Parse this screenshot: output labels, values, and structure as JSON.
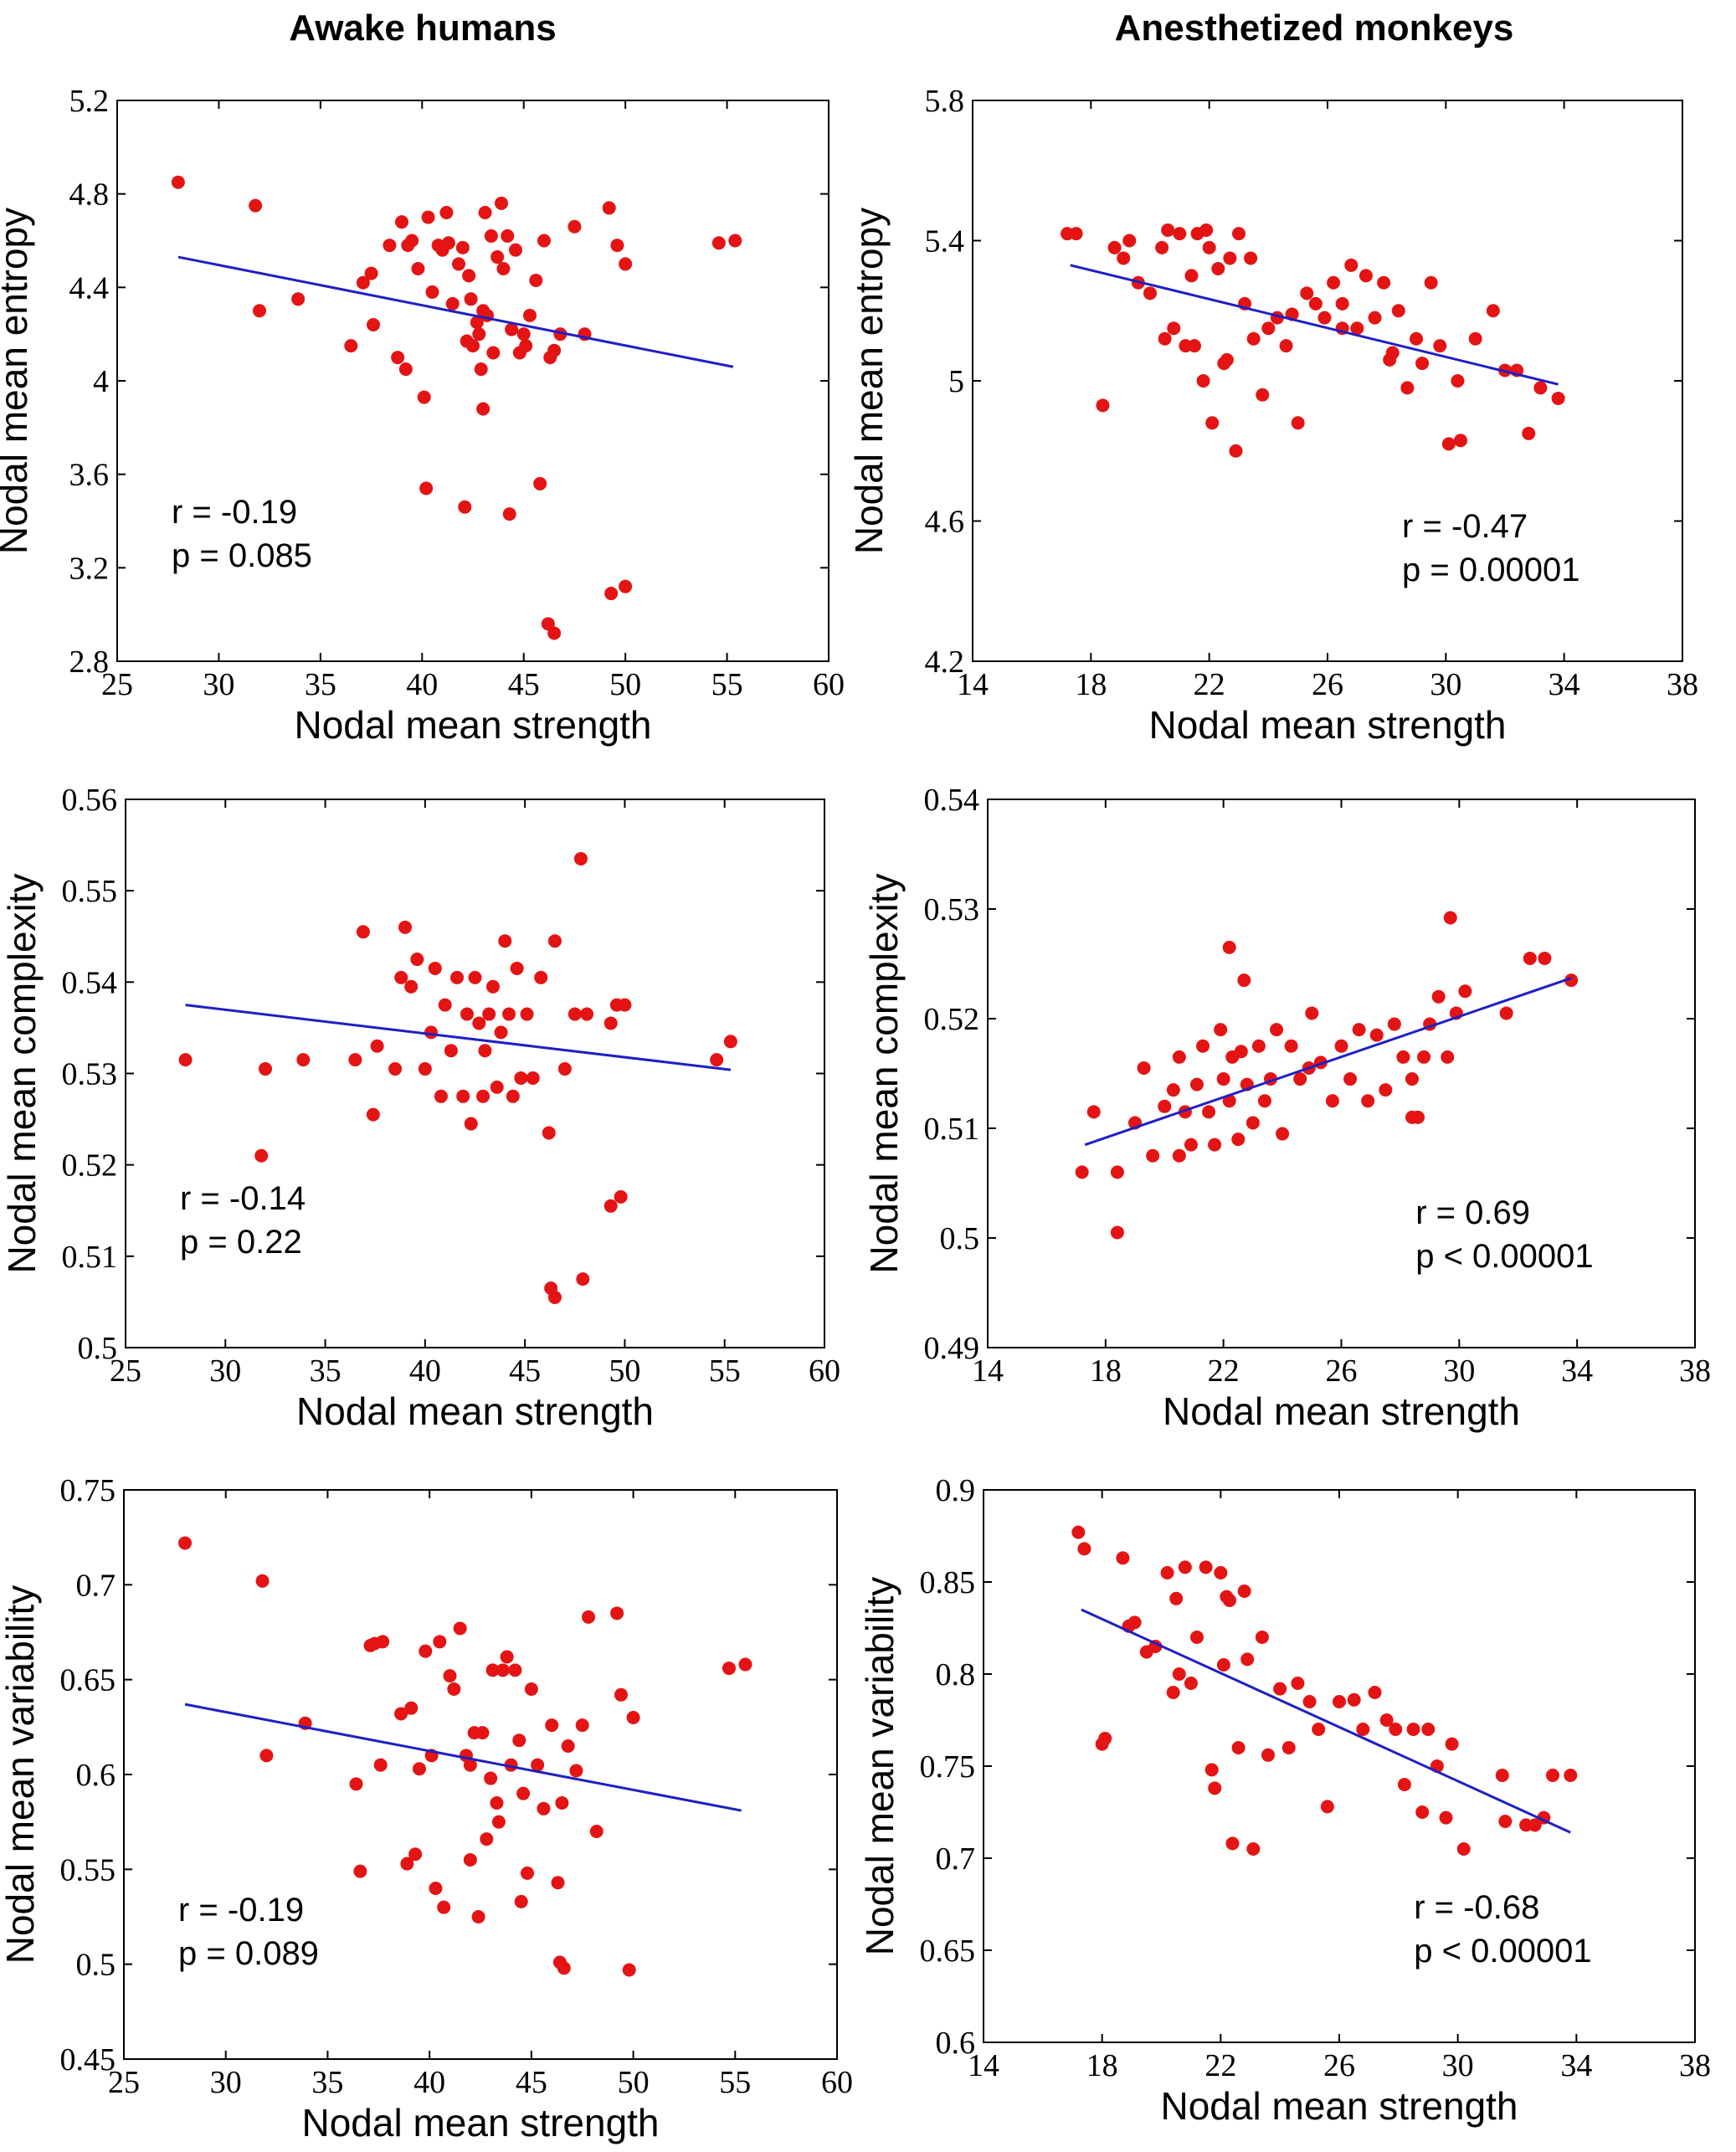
{
  "column_titles": [
    "Awake humans",
    "Anesthetized monkeys"
  ],
  "colors": {
    "points": "#e41414",
    "fit": "#1f1fc4",
    "axes": "#000000"
  },
  "chart_data": [
    {
      "id": "humans_entropy",
      "type": "scatter",
      "xlabel": "Nodal mean strength",
      "ylabel": "Nodal mean entropy",
      "xlim": [
        25,
        60
      ],
      "ylim": [
        2.8,
        5.2
      ],
      "xticks": [
        25,
        30,
        35,
        40,
        45,
        50,
        55,
        60
      ],
      "xtick_labels": [
        "25",
        "30",
        "35",
        "40",
        "45",
        "50",
        "55",
        "60"
      ],
      "yticks": [
        2.8,
        3.2,
        3.6,
        4.0,
        4.4,
        4.8,
        5.2
      ],
      "ytick_labels": [
        "2.8",
        "3.2",
        "3.6",
        "4",
        "4.4",
        "4.8",
        "5.2"
      ],
      "r_label": "r = -0.19",
      "p_label": "p = 0.085",
      "stats_position": "bottom-left",
      "fit": {
        "x": [
          28,
          55.3
        ],
        "y": [
          4.53,
          4.06
        ]
      },
      "points": {
        "x": [
          28.0,
          31.8,
          32.0,
          33.9,
          36.5,
          37.1,
          37.5,
          37.6,
          38.4,
          38.8,
          39.2,
          39.5,
          39.8,
          40.1,
          40.3,
          40.5,
          40.8,
          41.0,
          41.2,
          41.5,
          41.8,
          42.0,
          42.2,
          42.4,
          42.5,
          42.7,
          42.8,
          42.9,
          43.0,
          43.1,
          43.2,
          43.4,
          43.5,
          43.7,
          43.9,
          44.0,
          44.2,
          44.4,
          44.6,
          44.8,
          45.0,
          45.3,
          45.6,
          46.0,
          46.3,
          46.5,
          46.8,
          47.5,
          48.0,
          49.2,
          49.6,
          50.0,
          54.6,
          55.4,
          40.2,
          42.1,
          44.3,
          45.8,
          46.2,
          46.5,
          49.3,
          50.0,
          39.3,
          39.0,
          41.3,
          42.3,
          43.0,
          45.1
        ],
        "y": [
          4.85,
          4.75,
          4.3,
          4.35,
          4.15,
          4.42,
          4.46,
          4.24,
          4.58,
          4.1,
          4.05,
          4.6,
          4.48,
          3.93,
          4.7,
          4.38,
          4.58,
          4.56,
          4.72,
          4.33,
          4.5,
          4.57,
          4.17,
          4.35,
          4.15,
          4.25,
          4.2,
          4.05,
          3.88,
          4.72,
          4.28,
          4.62,
          4.12,
          4.53,
          4.76,
          4.48,
          4.62,
          4.22,
          4.56,
          4.12,
          4.2,
          4.28,
          4.43,
          4.6,
          4.1,
          4.13,
          4.2,
          4.66,
          4.2,
          4.74,
          4.58,
          4.5,
          4.59,
          4.6,
          3.54,
          3.46,
          3.43,
          3.56,
          2.96,
          2.92,
          3.09,
          3.12,
          4.58,
          4.68,
          4.59,
          4.45,
          4.3,
          4.15
        ]
      }
    },
    {
      "id": "monkeys_entropy",
      "type": "scatter",
      "xlabel": "Nodal mean strength",
      "ylabel": "Nodal mean entropy",
      "xlim": [
        14,
        38
      ],
      "ylim": [
        4.2,
        5.8
      ],
      "xticks": [
        14,
        18,
        22,
        26,
        30,
        34,
        38
      ],
      "xtick_labels": [
        "14",
        "18",
        "22",
        "26",
        "30",
        "34",
        "38"
      ],
      "yticks": [
        4.2,
        4.6,
        5.0,
        5.4,
        5.8
      ],
      "ytick_labels": [
        "4.2",
        "4.6",
        "5",
        "5.4",
        "5.8"
      ],
      "r_label": "r = -0.47",
      "p_label": "p = 0.00001",
      "stats_position": "bottom-right",
      "fit": {
        "x": [
          17.3,
          33.8
        ],
        "y": [
          5.33,
          4.99
        ]
      },
      "points": {
        "x": [
          17.2,
          17.5,
          18.4,
          18.8,
          19.1,
          19.6,
          20.0,
          20.4,
          20.6,
          20.8,
          21.0,
          21.2,
          21.4,
          21.6,
          21.8,
          22.0,
          22.1,
          22.3,
          22.5,
          22.7,
          22.9,
          23.0,
          23.2,
          23.5,
          23.8,
          24.0,
          24.3,
          24.6,
          25.0,
          25.3,
          25.6,
          25.9,
          26.2,
          26.5,
          26.8,
          27.0,
          27.3,
          27.6,
          27.9,
          28.1,
          28.4,
          28.7,
          29.0,
          29.2,
          29.5,
          29.8,
          30.1,
          30.4,
          31.6,
          32.0,
          32.4,
          32.8,
          33.2,
          33.8,
          20.5,
          21.9,
          22.6,
          23.4,
          19.3,
          21.5,
          24.8,
          26.5,
          28.2,
          30.5,
          31.0
        ],
        "y": [
          5.42,
          5.42,
          4.93,
          5.38,
          5.35,
          5.28,
          5.25,
          5.38,
          5.43,
          5.15,
          5.42,
          5.1,
          5.3,
          5.42,
          5.0,
          5.38,
          4.88,
          5.32,
          5.05,
          5.35,
          4.8,
          5.42,
          5.22,
          5.12,
          4.96,
          5.15,
          5.18,
          5.1,
          4.88,
          5.25,
          5.22,
          5.18,
          5.28,
          5.22,
          5.33,
          5.15,
          5.3,
          5.18,
          5.28,
          5.06,
          5.2,
          4.98,
          5.12,
          5.05,
          5.28,
          5.1,
          4.82,
          5.0,
          5.2,
          5.03,
          5.03,
          4.85,
          4.98,
          4.95,
          5.12,
          5.43,
          5.06,
          5.35,
          5.4,
          5.1,
          5.19,
          5.15,
          5.08,
          4.83,
          5.12
        ],
        "_note": "values estimated from plot"
      }
    },
    {
      "id": "humans_complexity",
      "type": "scatter",
      "xlabel": "Nodal mean strength",
      "ylabel": "Nodal mean complexity",
      "xlim": [
        25,
        60
      ],
      "ylim": [
        0.5,
        0.56
      ],
      "xticks": [
        25,
        30,
        35,
        40,
        45,
        50,
        55,
        60
      ],
      "xtick_labels": [
        "25",
        "30",
        "35",
        "40",
        "45",
        "50",
        "55",
        "60"
      ],
      "yticks": [
        0.5,
        0.51,
        0.52,
        0.53,
        0.54,
        0.55,
        0.56
      ],
      "ytick_labels": [
        "0.5",
        "0.51",
        "0.52",
        "0.53",
        "0.54",
        "0.55",
        "0.56"
      ],
      "r_label": "r = -0.14",
      "p_label": "p = 0.22",
      "stats_position": "bottom-left",
      "fit": {
        "x": [
          28,
          55.3
        ],
        "y": [
          0.5375,
          0.5304
        ]
      },
      "points": {
        "x": [
          28.0,
          31.8,
          32.0,
          33.9,
          36.5,
          36.9,
          37.4,
          37.6,
          38.5,
          38.8,
          39.0,
          39.3,
          39.6,
          40.0,
          40.3,
          40.5,
          40.8,
          41.0,
          41.3,
          41.6,
          41.9,
          42.1,
          42.3,
          42.5,
          42.7,
          42.9,
          43.0,
          43.2,
          43.4,
          43.6,
          43.8,
          44.0,
          44.2,
          44.4,
          44.6,
          44.8,
          45.1,
          45.4,
          45.8,
          46.2,
          46.5,
          47.0,
          47.5,
          47.8,
          48.1,
          49.3,
          49.6,
          50.0,
          54.6,
          55.3,
          46.3,
          46.5,
          47.9,
          49.3,
          49.8
        ],
        "y": [
          0.5315,
          0.521,
          0.5305,
          0.5315,
          0.5315,
          0.5455,
          0.5255,
          0.533,
          0.5305,
          0.5405,
          0.546,
          0.5395,
          0.5425,
          0.5305,
          0.5345,
          0.5415,
          0.5275,
          0.5375,
          0.5325,
          0.5405,
          0.5275,
          0.5365,
          0.5245,
          0.5405,
          0.5355,
          0.5275,
          0.5325,
          0.5365,
          0.5395,
          0.5285,
          0.5345,
          0.5445,
          0.5365,
          0.5275,
          0.5415,
          0.5295,
          0.5365,
          0.5295,
          0.5405,
          0.5235,
          0.5445,
          0.5305,
          0.5365,
          0.5535,
          0.5365,
          0.5355,
          0.5375,
          0.5375,
          0.5315,
          0.5335,
          0.5065,
          0.5055,
          0.5075,
          0.5155,
          0.5165
        ]
      }
    },
    {
      "id": "monkeys_complexity",
      "type": "scatter",
      "xlabel": "Nodal mean strength",
      "ylabel": "Nodal mean complexity",
      "xlim": [
        14,
        38
      ],
      "ylim": [
        0.49,
        0.54
      ],
      "xticks": [
        14,
        18,
        22,
        26,
        30,
        34,
        38
      ],
      "xtick_labels": [
        "14",
        "18",
        "22",
        "26",
        "30",
        "34",
        "38"
      ],
      "yticks": [
        0.49,
        0.5,
        0.51,
        0.52,
        0.53,
        0.54
      ],
      "ytick_labels": [
        "0.49",
        "0.5",
        "0.51",
        "0.52",
        "0.53",
        "0.54"
      ],
      "r_label": "r = 0.69",
      "p_label": "p < 0.00001",
      "stats_position": "bottom-right",
      "fit": {
        "x": [
          17.3,
          33.8
        ],
        "y": [
          0.5085,
          0.5237
        ]
      },
      "points": {
        "x": [
          17.2,
          17.6,
          18.4,
          18.4,
          19.0,
          19.3,
          19.6,
          20.0,
          20.3,
          20.5,
          20.7,
          20.9,
          21.1,
          21.3,
          21.5,
          21.7,
          21.9,
          22.0,
          22.2,
          22.3,
          22.5,
          22.6,
          22.8,
          23.0,
          23.2,
          23.4,
          23.6,
          23.8,
          24.0,
          24.3,
          24.6,
          25.0,
          25.3,
          25.7,
          26.0,
          26.3,
          26.6,
          26.9,
          27.2,
          27.5,
          27.8,
          28.1,
          28.4,
          28.6,
          28.8,
          29.0,
          29.3,
          29.6,
          29.9,
          30.2,
          31.6,
          32.4,
          32.9,
          33.8,
          22.2,
          22.7,
          29.7,
          28.4,
          20.5,
          24.9
        ],
        "y": [
          0.506,
          0.5115,
          0.506,
          0.5005,
          0.5105,
          0.5155,
          0.5075,
          0.512,
          0.5135,
          0.5165,
          0.5115,
          0.5085,
          0.514,
          0.5175,
          0.5115,
          0.5085,
          0.519,
          0.5145,
          0.5125,
          0.5165,
          0.509,
          0.517,
          0.514,
          0.5105,
          0.5175,
          0.5125,
          0.5145,
          0.519,
          0.5095,
          0.5175,
          0.5145,
          0.5205,
          0.516,
          0.5125,
          0.5175,
          0.5145,
          0.519,
          0.5125,
          0.5185,
          0.5135,
          0.5195,
          0.5165,
          0.5145,
          0.511,
          0.5165,
          0.5195,
          0.522,
          0.5165,
          0.5205,
          0.5225,
          0.5205,
          0.5255,
          0.5255,
          0.5235,
          0.5265,
          0.5235,
          0.5292,
          0.511,
          0.5075,
          0.5155
        ]
      }
    },
    {
      "id": "humans_variability",
      "type": "scatter",
      "xlabel": "Nodal mean strength",
      "ylabel": "Nodal mean variability",
      "xlim": [
        25,
        60
      ],
      "ylim": [
        0.45,
        0.75
      ],
      "xticks": [
        25,
        30,
        35,
        40,
        45,
        50,
        55,
        60
      ],
      "xtick_labels": [
        "25",
        "30",
        "35",
        "40",
        "45",
        "50",
        "55",
        "60"
      ],
      "yticks": [
        0.45,
        0.5,
        0.55,
        0.6,
        0.65,
        0.7,
        0.75
      ],
      "ytick_labels": [
        "0.45",
        "0.5",
        "0.55",
        "0.6",
        "0.65",
        "0.7",
        "0.75"
      ],
      "r_label": "r = -0.19",
      "p_label": "p = 0.089",
      "stats_position": "bottom-left",
      "fit": {
        "x": [
          28,
          55.3
        ],
        "y": [
          0.637,
          0.581
        ]
      },
      "points": {
        "x": [
          28.0,
          31.8,
          32.0,
          33.9,
          36.4,
          36.6,
          37.1,
          37.3,
          37.6,
          37.7,
          38.6,
          38.9,
          39.1,
          39.3,
          39.5,
          39.8,
          40.1,
          40.3,
          40.5,
          40.7,
          41.0,
          41.2,
          41.5,
          41.8,
          42.0,
          42.2,
          42.4,
          42.6,
          42.8,
          43.0,
          43.1,
          43.3,
          43.4,
          43.6,
          43.8,
          44.0,
          44.2,
          44.4,
          44.6,
          44.8,
          45.0,
          45.3,
          45.6,
          46.0,
          46.3,
          46.5,
          46.8,
          47.2,
          47.5,
          47.8,
          48.2,
          49.2,
          49.4,
          49.8,
          50.0,
          54.7,
          55.5,
          46.4,
          46.6,
          42.0,
          44.5
        ],
        "y": [
          0.722,
          0.702,
          0.61,
          0.627,
          0.595,
          0.549,
          0.668,
          0.669,
          0.605,
          0.67,
          0.632,
          0.553,
          0.635,
          0.558,
          0.603,
          0.665,
          0.61,
          0.54,
          0.67,
          0.53,
          0.652,
          0.645,
          0.677,
          0.61,
          0.605,
          0.622,
          0.525,
          0.622,
          0.566,
          0.598,
          0.655,
          0.585,
          0.575,
          0.655,
          0.662,
          0.605,
          0.655,
          0.618,
          0.59,
          0.548,
          0.645,
          0.605,
          0.582,
          0.626,
          0.543,
          0.585,
          0.615,
          0.602,
          0.626,
          0.683,
          0.57,
          0.685,
          0.642,
          0.497,
          0.63,
          0.656,
          0.658,
          0.501,
          0.498,
          0.555,
          0.533
        ]
      }
    },
    {
      "id": "monkeys_variability",
      "type": "scatter",
      "xlabel": "Nodal mean strength",
      "ylabel": "Nodal mean variability",
      "xlim": [
        14,
        38
      ],
      "ylim": [
        0.6,
        0.9
      ],
      "xticks": [
        14,
        18,
        22,
        26,
        30,
        34,
        38
      ],
      "xtick_labels": [
        "14",
        "18",
        "22",
        "26",
        "30",
        "34",
        "38"
      ],
      "yticks": [
        0.6,
        0.65,
        0.7,
        0.75,
        0.8,
        0.85,
        0.9
      ],
      "ytick_labels": [
        "0.6",
        "0.65",
        "0.7",
        "0.75",
        "0.8",
        "0.85",
        "0.9"
      ],
      "r_label": "r = -0.68",
      "p_label": "p < 0.00001",
      "stats_position": "bottom-right",
      "fit": {
        "x": [
          17.3,
          33.8
        ],
        "y": [
          0.835,
          0.714
        ]
      },
      "points": {
        "x": [
          17.2,
          17.4,
          18.0,
          18.1,
          18.7,
          18.9,
          19.1,
          19.5,
          19.8,
          20.2,
          20.4,
          20.5,
          20.6,
          20.8,
          21.0,
          21.2,
          21.5,
          21.7,
          21.8,
          22.0,
          22.1,
          22.2,
          22.3,
          22.4,
          22.6,
          22.8,
          22.9,
          23.1,
          23.4,
          23.6,
          24.0,
          24.3,
          24.6,
          25.0,
          25.3,
          25.6,
          26.0,
          26.5,
          26.8,
          27.2,
          27.6,
          27.9,
          28.2,
          28.5,
          28.8,
          29.0,
          29.3,
          29.6,
          29.8,
          30.2,
          31.5,
          31.6,
          32.3,
          32.6,
          32.9,
          33.2,
          33.8
        ],
        "y": [
          0.877,
          0.868,
          0.762,
          0.765,
          0.863,
          0.826,
          0.828,
          0.812,
          0.815,
          0.855,
          0.79,
          0.841,
          0.8,
          0.858,
          0.795,
          0.82,
          0.858,
          0.748,
          0.738,
          0.855,
          0.805,
          0.842,
          0.84,
          0.708,
          0.76,
          0.845,
          0.808,
          0.705,
          0.82,
          0.756,
          0.792,
          0.76,
          0.795,
          0.785,
          0.77,
          0.728,
          0.785,
          0.786,
          0.77,
          0.79,
          0.775,
          0.77,
          0.74,
          0.77,
          0.725,
          0.77,
          0.75,
          0.722,
          0.762,
          0.705,
          0.745,
          0.72,
          0.718,
          0.718,
          0.722,
          0.745,
          0.745
        ]
      }
    }
  ]
}
